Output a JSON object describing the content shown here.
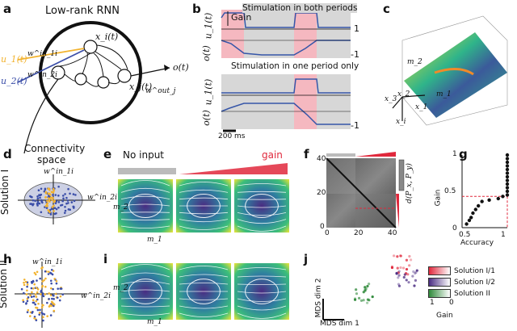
{
  "panels": {
    "a": {
      "letter": "a",
      "title": "Low-rank RNN",
      "x_i": "x_i(t)",
      "x_j": "x_j(t)",
      "u1": "u_1(t)",
      "u2": "u_2(t)",
      "w1in": "w^in_1i",
      "w2in": "w^in_2i",
      "wout": "w^out_j",
      "o": "o(t)"
    },
    "b": {
      "letter": "b",
      "title_top": "Stimulation in both periods",
      "title_bottom": "Stimulation in one period only",
      "gain": "Gain",
      "u1": "u_1(t)",
      "o": "o(t)",
      "one": "1",
      "minus_one": "-1",
      "scale": "200 ms"
    },
    "c": {
      "letter": "c",
      "m1": "m_1",
      "m2": "m_2",
      "x1": "x_1",
      "x2": "x_2",
      "x3": "x_3",
      "xi": "x_i"
    },
    "d": {
      "letter": "d",
      "title_line1": "Connectivity",
      "title_line2": "space",
      "w1in": "w^in_1i",
      "w2in": "w^in_2i",
      "side": "Solution I"
    },
    "e": {
      "letter": "e",
      "no_input": "No input",
      "gain": "gain",
      "m1": "m_1",
      "m2": "m_2"
    },
    "f": {
      "letter": "f",
      "x_ticks": [
        "0",
        "20",
        "40"
      ],
      "y_ticks": [
        "40",
        "20",
        "0"
      ],
      "cbar_label": "d(P_x, P_y)"
    },
    "g": {
      "letter": "g",
      "xlabel": "Accuracy",
      "ylabel": "Gain",
      "x_ticks": [
        "0.5",
        "1"
      ],
      "y_ticks": [
        "1",
        "0.5",
        "0"
      ]
    },
    "h": {
      "letter": "h",
      "w1in": "w^in_1i",
      "w2in": "w^in_2i",
      "side": "Solution II"
    },
    "i": {
      "letter": "i",
      "m1": "m_1",
      "m2": "m_2"
    },
    "j": {
      "letter": "j",
      "dim1": "MDS dim 1",
      "dim2": "MDS dim 2",
      "legend": [
        "Solution I/1",
        "Solution I/2",
        "Solution II"
      ],
      "gain_label": "Gain",
      "gain_ticks": [
        "1",
        "0"
      ]
    }
  },
  "colors": {
    "orange": "#f2b330",
    "blue": "#3b4ea8",
    "pink": "#f5b8c0",
    "gray": "#d7d7d7",
    "trace": "#3656a8",
    "red": "#e0283c",
    "purple": "#4a2c82",
    "green": "#2f8a3a"
  },
  "chart_data": [
    {
      "type": "scatter",
      "panel": "g",
      "xlabel": "Accuracy",
      "ylabel": "Gain",
      "xlim": [
        0.5,
        1.0
      ],
      "ylim": [
        0,
        1
      ],
      "x": [
        0.55,
        0.58,
        0.6,
        0.62,
        0.65,
        0.68,
        0.72,
        0.8,
        0.9,
        0.95,
        1.0,
        1.0,
        1.0,
        1.0,
        1.0,
        1.0,
        1.0,
        1.0,
        1.0,
        1.0,
        1.0,
        1.0
      ],
      "y": [
        0.05,
        0.1,
        0.14,
        0.2,
        0.25,
        0.3,
        0.36,
        0.38,
        0.4,
        0.43,
        0.45,
        0.5,
        0.55,
        0.6,
        0.65,
        0.7,
        0.75,
        0.8,
        0.85,
        0.9,
        0.95,
        1.0
      ],
      "threshold_gain": 0.43
    }
  ]
}
